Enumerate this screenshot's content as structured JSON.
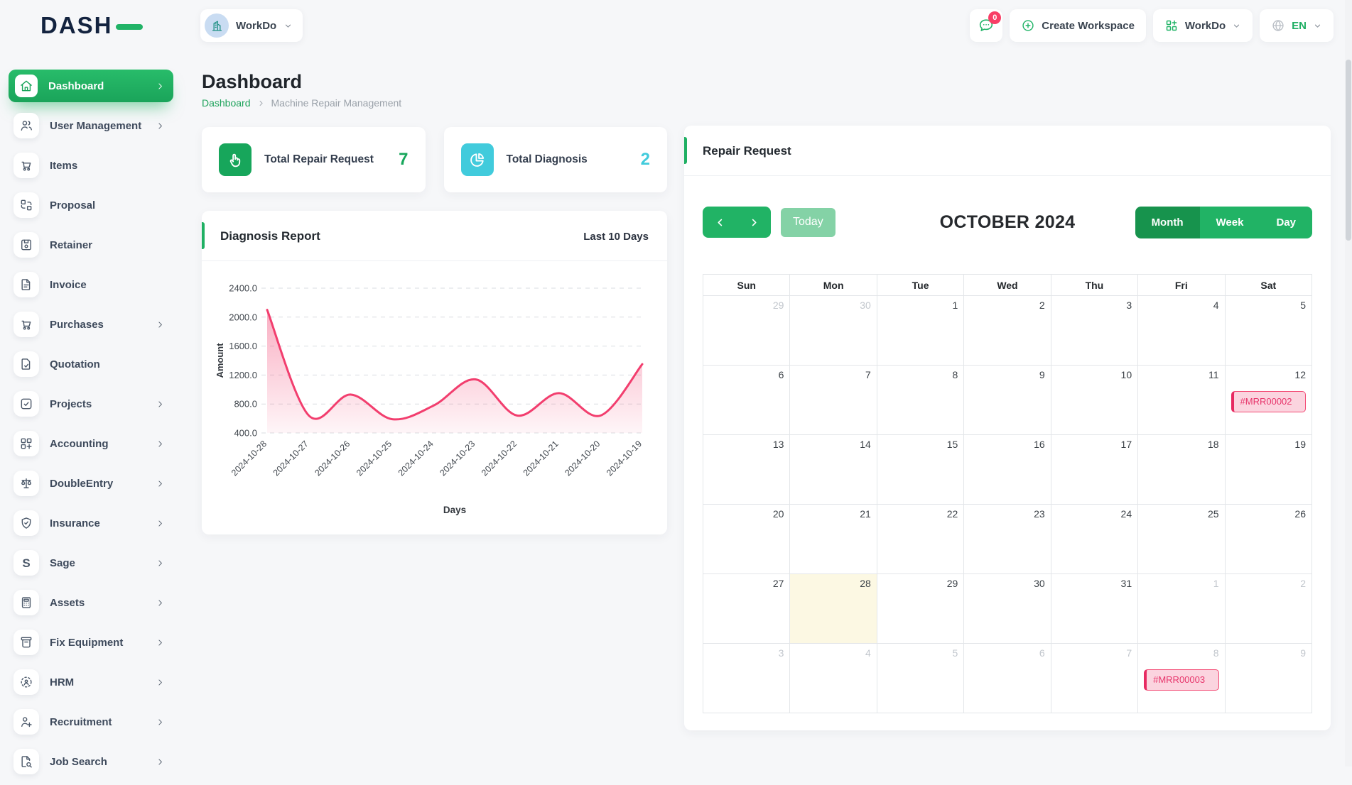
{
  "topbar": {
    "logo_text": "DASH",
    "workspace_switcher": {
      "label": "WorkDo",
      "avatar_icon": "building"
    },
    "messages": {
      "badge_count": "0",
      "icon": "chat"
    },
    "create_workspace": {
      "label": "Create Workspace",
      "icon": "plus-circle"
    },
    "app_menu": {
      "label": "WorkDo",
      "icon": "grid-add"
    },
    "language": {
      "code": "EN",
      "icon": "globe"
    }
  },
  "sidebar": {
    "items": [
      {
        "label": "Dashboard",
        "icon": "home",
        "active": true,
        "chevron": true
      },
      {
        "label": "User Management",
        "icon": "users",
        "chevron": true
      },
      {
        "label": "Items",
        "icon": "cart",
        "chevron": false
      },
      {
        "label": "Proposal",
        "icon": "workflow",
        "chevron": false
      },
      {
        "label": "Retainer",
        "icon": "save",
        "chevron": false
      },
      {
        "label": "Invoice",
        "icon": "file-invoice",
        "chevron": false
      },
      {
        "label": "Purchases",
        "icon": "cart",
        "chevron": true
      },
      {
        "label": "Quotation",
        "icon": "file-check",
        "chevron": false
      },
      {
        "label": "Projects",
        "icon": "square-check",
        "chevron": true
      },
      {
        "label": "Accounting",
        "icon": "grid-plus",
        "chevron": true
      },
      {
        "label": "DoubleEntry",
        "icon": "scale",
        "chevron": true
      },
      {
        "label": "Insurance",
        "icon": "shield",
        "chevron": true
      },
      {
        "label": "Sage",
        "icon": "sage-s",
        "chevron": true
      },
      {
        "label": "Assets",
        "icon": "calculator",
        "chevron": true
      },
      {
        "label": "Fix Equipment",
        "icon": "archive",
        "chevron": true
      },
      {
        "label": "HRM",
        "icon": "user-scan",
        "chevron": true
      },
      {
        "label": "Recruitment",
        "icon": "user-plus",
        "chevron": true
      },
      {
        "label": "Job Search",
        "icon": "file-search",
        "chevron": true
      }
    ]
  },
  "page": {
    "title": "Dashboard",
    "breadcrumb": {
      "root": "Dashboard",
      "current": "Machine Repair Management"
    }
  },
  "stats": [
    {
      "label": "Total Repair Request",
      "value": "7",
      "color": "#17a65b",
      "icon": "hand-click"
    },
    {
      "label": "Total Diagnosis",
      "value": "2",
      "color": "#41cbdc",
      "icon": "pie-chart"
    }
  ],
  "diagnosis_card": {
    "title": "Diagnosis Report",
    "range_label": "Last 10 Days"
  },
  "chart_data": {
    "type": "area",
    "title": "Diagnosis Report",
    "x": [
      "2024-10-28",
      "2024-10-27",
      "2024-10-26",
      "2024-10-25",
      "2024-10-24",
      "2024-10-23",
      "2024-10-22",
      "2024-10-21",
      "2024-10-20",
      "2024-10-19"
    ],
    "series": [
      {
        "name": "Amount",
        "values": [
          2100,
          640,
          930,
          590,
          780,
          1140,
          640,
          950,
          640,
          1350
        ]
      }
    ],
    "xlabel": "Days",
    "ylabel": "Amount",
    "ylim": [
      400,
      2400
    ],
    "yticks": [
      400,
      800,
      1200,
      1600,
      2000,
      2400
    ],
    "grid": "dashed-horizontal",
    "legend": "none",
    "line_color": "#f23e6e",
    "fill_color": "#f23e6e"
  },
  "calendar": {
    "card_title": "Repair Request",
    "toolbar": {
      "today_label": "Today",
      "title": "OCTOBER 2024",
      "views": [
        "Month",
        "Week",
        "Day"
      ],
      "active_view": "Month"
    },
    "day_headers": [
      "Sun",
      "Mon",
      "Tue",
      "Wed",
      "Thu",
      "Fri",
      "Sat"
    ],
    "weeks": [
      [
        {
          "d": "29",
          "muted": true
        },
        {
          "d": "30",
          "muted": true
        },
        {
          "d": "1"
        },
        {
          "d": "2"
        },
        {
          "d": "3"
        },
        {
          "d": "4"
        },
        {
          "d": "5"
        }
      ],
      [
        {
          "d": "6"
        },
        {
          "d": "7"
        },
        {
          "d": "8"
        },
        {
          "d": "9"
        },
        {
          "d": "10"
        },
        {
          "d": "11"
        },
        {
          "d": "12",
          "event": "#MRR00002"
        }
      ],
      [
        {
          "d": "13"
        },
        {
          "d": "14"
        },
        {
          "d": "15"
        },
        {
          "d": "16"
        },
        {
          "d": "17"
        },
        {
          "d": "18"
        },
        {
          "d": "19"
        }
      ],
      [
        {
          "d": "20"
        },
        {
          "d": "21"
        },
        {
          "d": "22"
        },
        {
          "d": "23"
        },
        {
          "d": "24"
        },
        {
          "d": "25"
        },
        {
          "d": "26"
        }
      ],
      [
        {
          "d": "27"
        },
        {
          "d": "28",
          "today": true
        },
        {
          "d": "29"
        },
        {
          "d": "30"
        },
        {
          "d": "31"
        },
        {
          "d": "1",
          "muted": true
        },
        {
          "d": "2",
          "muted": true
        }
      ],
      [
        {
          "d": "3",
          "muted": true
        },
        {
          "d": "4",
          "muted": true
        },
        {
          "d": "5",
          "muted": true
        },
        {
          "d": "6",
          "muted": true
        },
        {
          "d": "7",
          "muted": true
        },
        {
          "d": "8",
          "muted": true,
          "event": "#MRR00003"
        },
        {
          "d": "9",
          "muted": true
        }
      ]
    ],
    "today_bg": "#fcf8e3",
    "event_color": "#e7356b"
  }
}
